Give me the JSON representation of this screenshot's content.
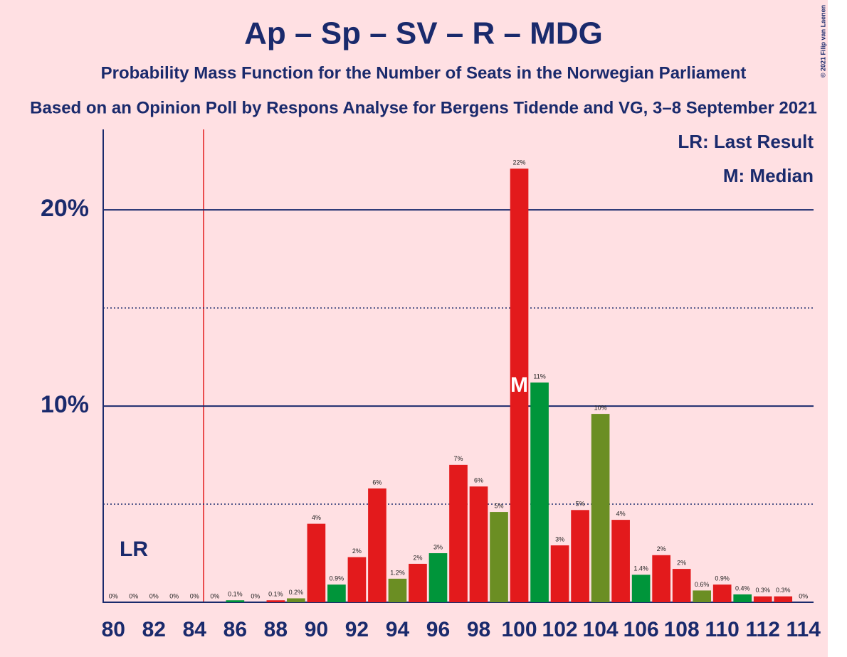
{
  "chart_data": {
    "type": "bar",
    "title": "Ap – Sp – SV – R – MDG",
    "subtitle": "Probability Mass Function for the Number of Seats in the Norwegian Parliament",
    "subtitle2": "Based on an Opinion Poll by Respons Analyse for Bergens Tidende and VG, 3–8 September 2021",
    "copyright": "© 2021 Filip van Laenen",
    "legend": [
      "LR: Last Result",
      "M: Median"
    ],
    "last_result_label": "LR",
    "median_label": "M",
    "x": [
      80,
      81,
      82,
      83,
      84,
      85,
      86,
      87,
      88,
      89,
      90,
      91,
      92,
      93,
      94,
      95,
      96,
      97,
      98,
      99,
      100,
      101,
      102,
      103,
      104,
      105,
      106,
      107,
      108,
      109,
      110,
      111,
      112,
      113,
      114
    ],
    "values": [
      0,
      0,
      0,
      0,
      0,
      0,
      0.1,
      0,
      0.1,
      0.2,
      4.0,
      0.9,
      2.3,
      5.8,
      1.2,
      1.96,
      2.5,
      7.0,
      5.9,
      4.6,
      22.1,
      11.2,
      2.9,
      4.7,
      9.6,
      4.2,
      1.4,
      2.4,
      1.7,
      0.6,
      0.9,
      0.4,
      0.3,
      0.3,
      0
    ],
    "value_labels": [
      "0%",
      "0%",
      "0%",
      "0%",
      "0%",
      "0%",
      "0.1%",
      "0%",
      "0.1%",
      "0.2%",
      "4%",
      "0.9%",
      "2%",
      "6%",
      "1.2%",
      "2%",
      "3%",
      "7%",
      "6%",
      "5%",
      "22%",
      "11%",
      "3%",
      "5%",
      "10%",
      "4%",
      "1.4%",
      "2%",
      "2%",
      "0.6%",
      "0.9%",
      "0.4%",
      "0.3%",
      "0.3%",
      "0%"
    ],
    "colors": [
      "#e31a1c",
      "#00953a",
      "#e31a1c",
      "#e31a1c",
      "#6b8e23",
      "#e31a1c",
      "#00953a",
      "#e31a1c",
      "#e31a1c",
      "#6b8e23",
      "#e31a1c",
      "#00953a",
      "#e31a1c",
      "#e31a1c",
      "#6b8e23",
      "#e31a1c",
      "#00953a",
      "#e31a1c",
      "#e31a1c",
      "#6b8e23",
      "#e31a1c",
      "#00953a",
      "#e31a1c",
      "#e31a1c",
      "#6b8e23",
      "#e31a1c",
      "#00953a",
      "#e31a1c",
      "#e31a1c",
      "#6b8e23",
      "#e31a1c",
      "#00953a",
      "#e31a1c",
      "#e31a1c",
      "#6b8e23"
    ],
    "median_index": 20,
    "xlim": [
      79.5,
      114.5
    ],
    "xticks": [
      80,
      82,
      84,
      86,
      88,
      90,
      92,
      94,
      96,
      98,
      100,
      102,
      104,
      106,
      108,
      110,
      112,
      114
    ],
    "ylim": [
      0,
      24.1
    ],
    "yticks": [
      {
        "value": 10,
        "label": "10%"
      },
      {
        "value": 20,
        "label": "20%"
      }
    ],
    "minor_gridlines": [
      5,
      15
    ]
  }
}
